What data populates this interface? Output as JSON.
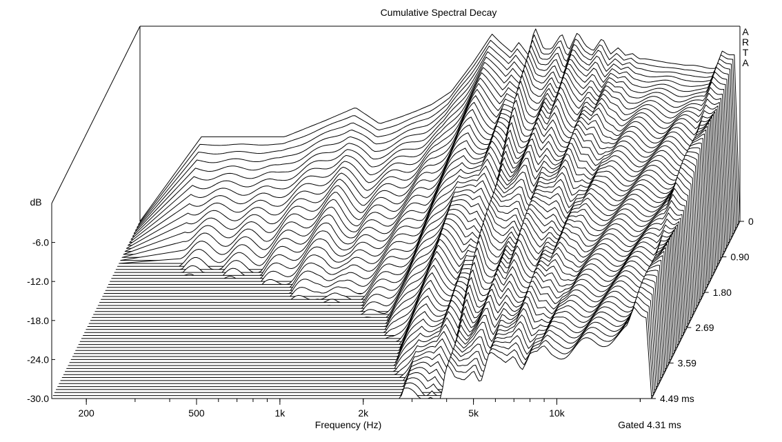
{
  "chart_data": {
    "type": "waterfall",
    "title": "Cumulative Spectral Decay",
    "brand": [
      "A",
      "R",
      "T",
      "A"
    ],
    "xlabel": "Frequency (Hz)",
    "x_scale": "log",
    "xlim": [
      150,
      22000
    ],
    "x_ticks": [
      {
        "value": 200,
        "label": "200"
      },
      {
        "value": 500,
        "label": "500"
      },
      {
        "value": 1000,
        "label": "1k"
      },
      {
        "value": 2000,
        "label": "2k"
      },
      {
        "value": 5000,
        "label": "5k"
      },
      {
        "value": 10000,
        "label": "10k"
      }
    ],
    "ylabel": "dB",
    "ylim": [
      -30,
      0
    ],
    "y_ticks": [
      {
        "value": -6,
        "label": "-6.0"
      },
      {
        "value": -12,
        "label": "-12.0"
      },
      {
        "value": -18,
        "label": "-18.0"
      },
      {
        "value": -24,
        "label": "-24.0"
      },
      {
        "value": -30,
        "label": "-30.0"
      }
    ],
    "z_unit": "ms",
    "zlim": [
      0,
      4.49
    ],
    "z_ticks": [
      {
        "value": 0,
        "label": "0"
      },
      {
        "value": 0.9,
        "label": "0.90"
      },
      {
        "value": 1.8,
        "label": "1.80"
      },
      {
        "value": 2.69,
        "label": "2.69"
      },
      {
        "value": 3.59,
        "label": "3.59"
      },
      {
        "value": 4.49,
        "label": "4.49 ms"
      }
    ],
    "slice_count": 60,
    "gated_label": "Gated 4.31 ms",
    "grid": false,
    "series": [
      {
        "time_ms": 0,
        "freq_hz": [
          300,
          500,
          700,
          900,
          1100,
          1300,
          1500,
          1700,
          2000,
          2400,
          2800,
          3000,
          3300,
          3500,
          3800,
          4000,
          4300,
          4600,
          5000,
          5300,
          5700,
          6100,
          6500,
          7000,
          7500,
          8000,
          8500,
          9000,
          9500,
          10000,
          11000,
          12000,
          13000,
          14000,
          15000,
          16000,
          17000,
          18000,
          19000,
          20000
        ],
        "db": [
          -17,
          -17,
          -14.5,
          -12.5,
          -15,
          -14,
          -13,
          -12,
          -10,
          -5.5,
          -1.2,
          -2.5,
          -4,
          -2.5,
          -4.5,
          -0.1,
          -3.5,
          -3.5,
          -1.1,
          -3.8,
          -0.9,
          -3,
          -3.8,
          -1.8,
          -4.3,
          -3.3,
          -4.5,
          -4.2,
          -5,
          -5,
          -5.3,
          -5.6,
          -5.8,
          -6,
          -6,
          -6.2,
          -6.5,
          -6.5,
          -3.8,
          -4.4
        ]
      }
    ]
  }
}
